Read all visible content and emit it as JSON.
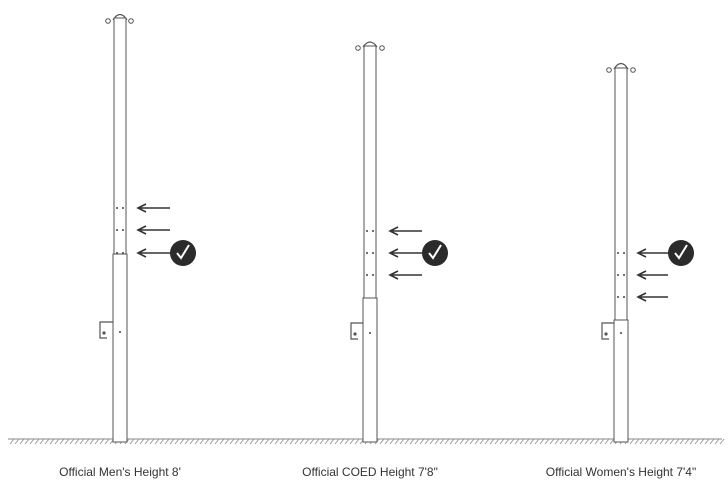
{
  "colors": {
    "pole_stroke": "#555555",
    "pole_fill": "#ffffff",
    "arrow": "#333333",
    "check_badge": "#2b2b2b",
    "check_mark": "#ffffff",
    "ground": "#888888",
    "caption": "#333333"
  },
  "icons": {
    "arrow": "arrow-left-icon",
    "check": "check-circle-icon",
    "bracket": "mounting-bracket-icon",
    "pulley": "pulley-icon"
  },
  "poles": [
    {
      "label": "Official Men's Height 8'",
      "markers": [
        "arrow",
        "arrow",
        "check"
      ]
    },
    {
      "label": "Official COED Height 7'8\"",
      "markers": [
        "arrow",
        "check",
        "arrow"
      ]
    },
    {
      "label": "Official Women's Height 7'4\"",
      "markers": [
        "check",
        "arrow",
        "arrow"
      ]
    }
  ]
}
